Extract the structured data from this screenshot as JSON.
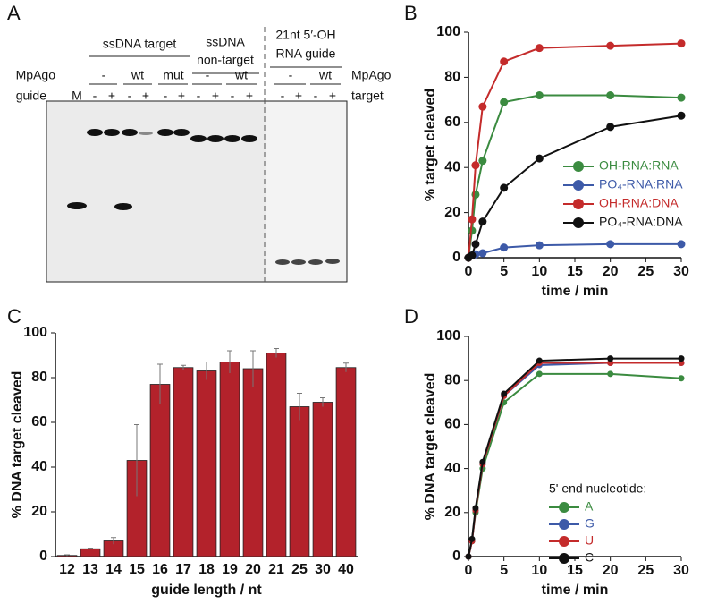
{
  "gel": {
    "panel": "A",
    "groups": [
      "ssDNA target",
      "ssDNA",
      "non-target",
      "21nt 5′-OH",
      "RNA guide"
    ],
    "row_labels": {
      "mpago": "MpAgo",
      "guide": "guide",
      "marker": "M",
      "mpago_right": "MpAgo",
      "target": "target"
    },
    "mpago": [
      "-",
      "wt",
      "mut",
      "-",
      "wt",
      "-",
      "wt"
    ],
    "signs": [
      "-",
      "+",
      "-",
      "+",
      "-",
      "+",
      "-",
      "+",
      "-",
      "+",
      "-",
      "+",
      "-",
      "+"
    ]
  },
  "chart_data": [
    {
      "type": "line",
      "panel": "B",
      "xlabel": "time / min",
      "ylabel": "% target cleaved",
      "x": [
        0,
        0.5,
        1,
        2,
        5,
        10,
        20,
        30
      ],
      "xlim": [
        0,
        30
      ],
      "xticks": [
        0,
        5,
        10,
        15,
        20,
        25,
        30
      ],
      "ylim": [
        0,
        100
      ],
      "yticks": [
        0,
        20,
        40,
        60,
        80,
        100
      ],
      "series": [
        {
          "name": "OH-RNA:RNA",
          "color": "#3b8b40",
          "values": [
            0,
            12,
            28,
            43,
            69,
            72,
            72,
            71
          ]
        },
        {
          "name": "PO₄-RNA:RNA",
          "color": "#3d5aa8",
          "values": [
            0,
            1,
            1.5,
            2,
            4.5,
            5.5,
            6,
            6
          ]
        },
        {
          "name": "OH-RNA:DNA",
          "color": "#c42b2b",
          "values": [
            0,
            17,
            41,
            67,
            87,
            93,
            94,
            95
          ]
        },
        {
          "name": "PO₄-RNA:DNA",
          "color": "#111111",
          "values": [
            0,
            1,
            6,
            16,
            31,
            44,
            58,
            63
          ]
        }
      ]
    },
    {
      "type": "bar",
      "panel": "C",
      "xlabel": "guide length / nt",
      "ylabel": "% DNA target cleaved",
      "categories": [
        "12",
        "13",
        "14",
        "15",
        "16",
        "17",
        "18",
        "19",
        "20",
        "21",
        "25",
        "30",
        "40"
      ],
      "values": [
        0.5,
        3.5,
        7,
        43,
        77,
        84.5,
        83,
        87,
        84,
        91,
        67,
        69,
        84.5
      ],
      "errors": [
        0.3,
        0.3,
        1.5,
        16,
        9,
        1,
        4,
        5,
        8,
        2,
        6,
        2,
        2
      ],
      "color": "#b3222b",
      "ylim": [
        0,
        100
      ],
      "yticks": [
        0,
        20,
        40,
        60,
        80,
        100
      ]
    },
    {
      "type": "line",
      "panel": "D",
      "xlabel": "time / min",
      "ylabel": "% DNA target cleaved",
      "legend_title": "5' end nucleotide:",
      "x": [
        0,
        0.5,
        1,
        2,
        5,
        10,
        20,
        30
      ],
      "xlim": [
        0,
        30
      ],
      "xticks": [
        0,
        5,
        10,
        15,
        20,
        25,
        30
      ],
      "ylim": [
        0,
        100
      ],
      "yticks": [
        0,
        20,
        40,
        60,
        80,
        100
      ],
      "series": [
        {
          "name": "A",
          "color": "#3b8b40",
          "values": [
            0,
            7,
            20,
            40,
            70,
            83,
            83,
            81
          ]
        },
        {
          "name": "G",
          "color": "#3d5aa8",
          "values": [
            0,
            7,
            21,
            42,
            73,
            87,
            88,
            88
          ]
        },
        {
          "name": "U",
          "color": "#c42b2b",
          "values": [
            0,
            7,
            21,
            42,
            73,
            88,
            88,
            88
          ]
        },
        {
          "name": "C",
          "color": "#111111",
          "values": [
            0,
            8,
            22,
            43,
            74,
            89,
            90,
            90
          ]
        }
      ]
    }
  ]
}
